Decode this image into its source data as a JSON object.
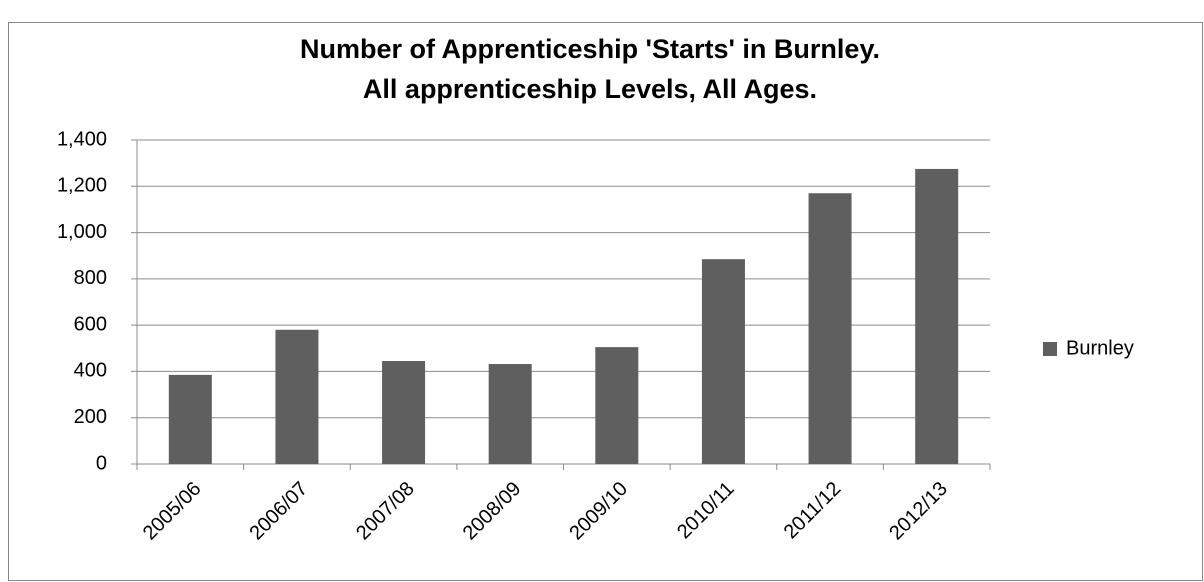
{
  "chart_data": {
    "type": "bar",
    "title": [
      "Number of Apprenticeship 'Starts' in Burnley.",
      "All apprenticeship Levels, All Ages."
    ],
    "categories": [
      "2005/06",
      "2006/07",
      "2007/08",
      "2008/09",
      "2009/10",
      "2010/11",
      "2011/12",
      "2012/13"
    ],
    "series": [
      {
        "name": "Burnley",
        "color": "#5f5f5f",
        "values": [
          385,
          580,
          445,
          432,
          505,
          885,
          1170,
          1275
        ]
      }
    ],
    "ylim": [
      0,
      1400
    ],
    "yticks": [
      0,
      200,
      400,
      600,
      800,
      {
        "value": 1000,
        "label": "1,000"
      },
      {
        "value": 1200,
        "label": "1,200"
      },
      {
        "value": 1400,
        "label": "1,400"
      }
    ],
    "grid": true,
    "legend": "right"
  }
}
